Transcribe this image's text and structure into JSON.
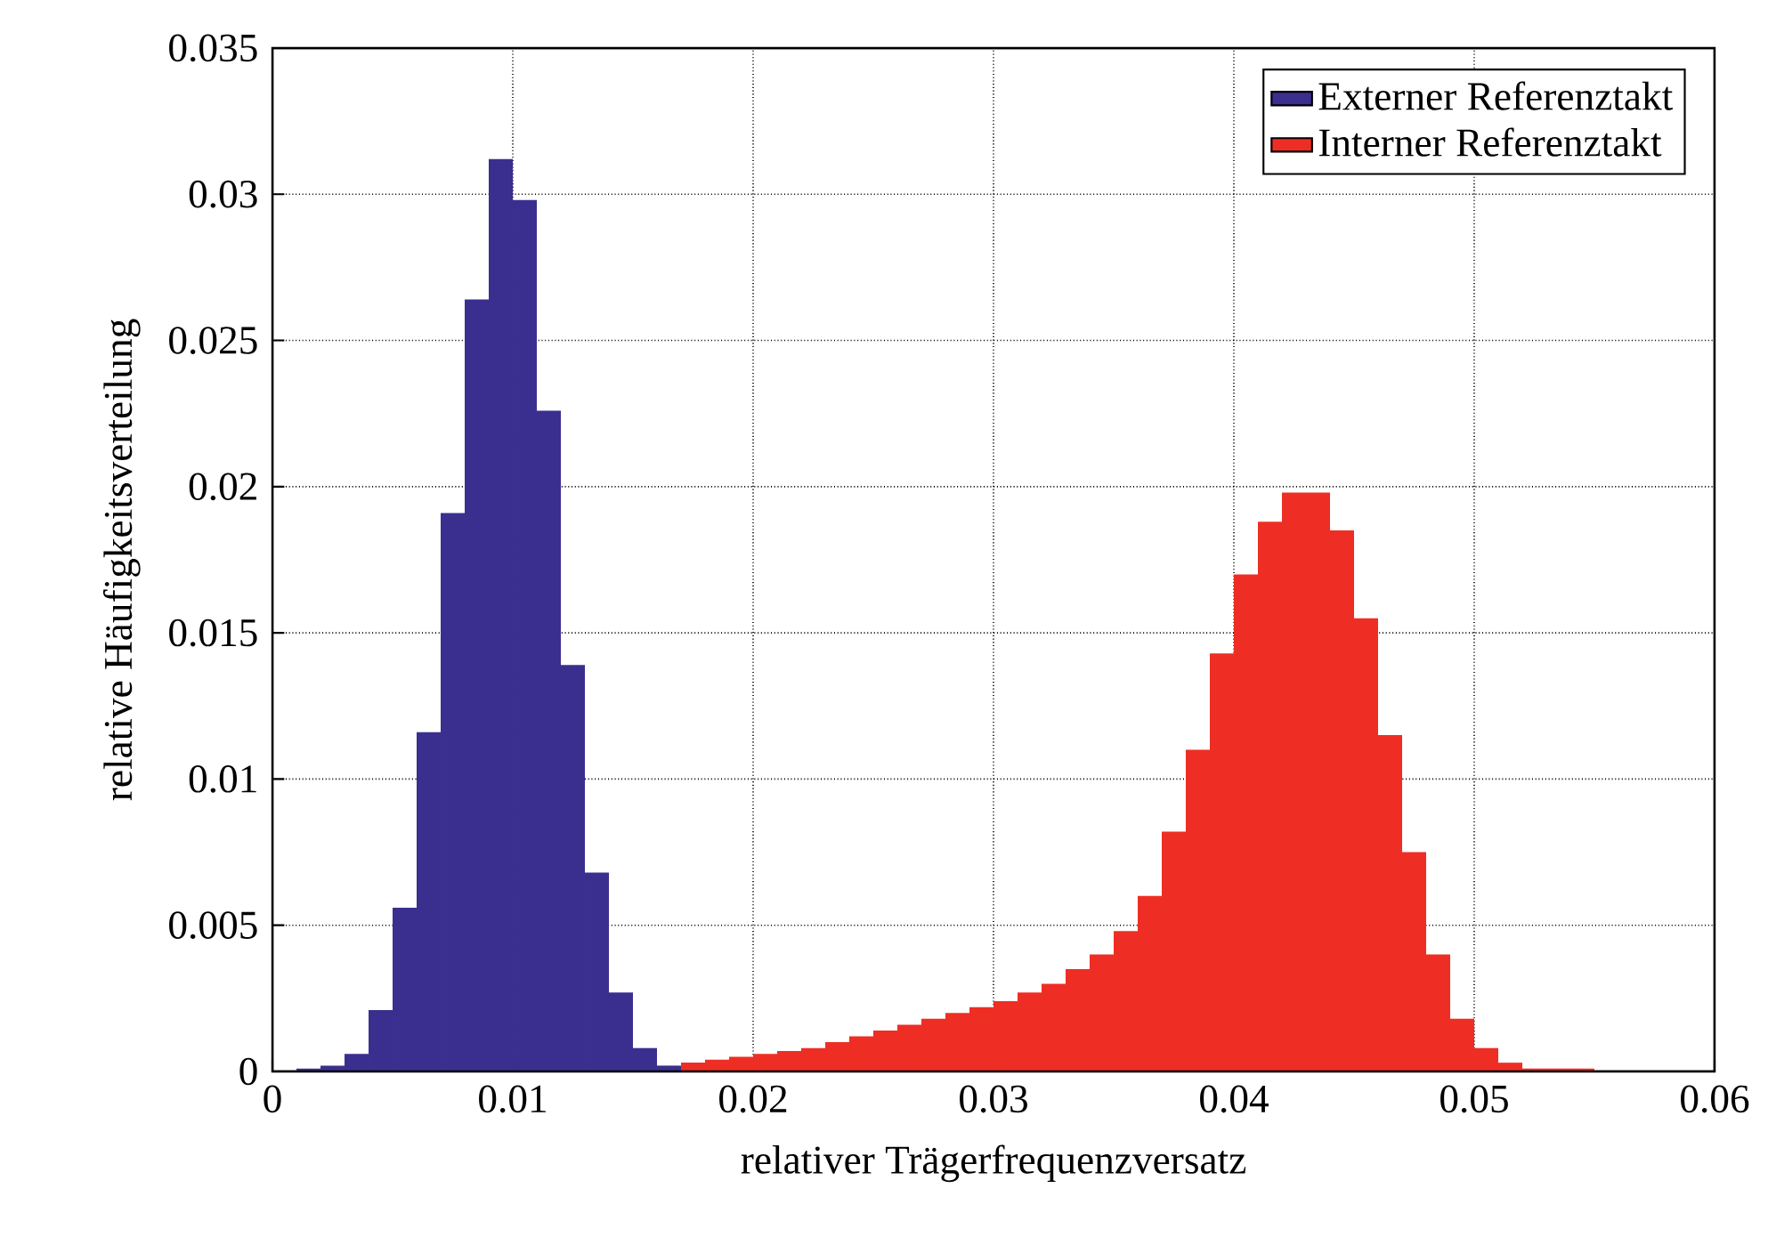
{
  "chart_data": {
    "type": "histogram",
    "xlabel": "relativer Trägerfrequenzversatz",
    "ylabel": "relative Häufigkeitsverteilung",
    "xlim": [
      0,
      0.06
    ],
    "xticks": [
      0,
      0.01,
      0.02,
      0.03,
      0.04,
      0.05,
      0.06
    ],
    "ylim": [
      0,
      0.035
    ],
    "yticks": [
      0,
      0.005,
      0.01,
      0.015,
      0.02,
      0.025,
      0.03,
      0.035
    ],
    "grid": true,
    "legend": "top right",
    "bins": [
      0.001,
      0.002,
      0.003,
      0.004,
      0.005,
      0.006,
      0.007,
      0.008,
      0.009,
      0.01,
      0.011,
      0.012,
      0.013,
      0.014,
      0.015,
      0.016,
      0.017,
      0.018,
      0.019,
      0.02,
      0.021,
      0.022,
      0.023,
      0.024,
      0.025,
      0.026,
      0.027,
      0.028,
      0.029,
      0.03,
      0.031,
      0.032,
      0.033,
      0.034,
      0.035,
      0.036,
      0.037,
      0.038,
      0.039,
      0.04,
      0.041,
      0.042,
      0.043,
      0.044,
      0.045,
      0.046,
      0.047,
      0.048,
      0.049,
      0.05,
      0.051,
      0.052,
      0.053,
      0.054,
      0.055
    ],
    "series": [
      {
        "name": "Externer Referenztakt",
        "color": "#3a2f8f",
        "values": [
          0.0001,
          0.0002,
          0.0006,
          0.0021,
          0.0056,
          0.0116,
          0.0191,
          0.0264,
          0.0312,
          0.0298,
          0.0226,
          0.0139,
          0.0068,
          0.0027,
          0.0008,
          0.0002,
          null,
          null,
          null,
          null,
          null,
          null,
          null,
          null,
          null,
          null,
          null,
          null,
          null,
          null,
          null,
          null,
          null,
          null,
          null,
          null,
          null,
          null,
          null,
          null,
          null,
          null,
          null,
          null,
          null,
          null,
          null,
          null,
          null,
          null,
          null,
          null,
          null,
          null
        ]
      },
      {
        "name": "Interner Referenztakt",
        "color": "#ee2e24",
        "values": [
          null,
          null,
          null,
          null,
          null,
          null,
          null,
          null,
          null,
          null,
          null,
          null,
          null,
          null,
          null,
          null,
          0.0003,
          0.0004,
          0.0005,
          0.0006,
          0.0007,
          0.0008,
          0.001,
          0.0012,
          0.0014,
          0.0016,
          0.0018,
          0.002,
          0.0022,
          0.0024,
          0.0027,
          0.003,
          0.0035,
          0.004,
          0.0048,
          0.006,
          0.0082,
          0.011,
          0.0143,
          0.017,
          0.0188,
          0.0198,
          0.0198,
          0.0185,
          0.0155,
          0.0115,
          0.0075,
          0.004,
          0.0018,
          0.0008,
          0.0003,
          0.0001,
          0.0001,
          0.0001
        ]
      }
    ]
  }
}
